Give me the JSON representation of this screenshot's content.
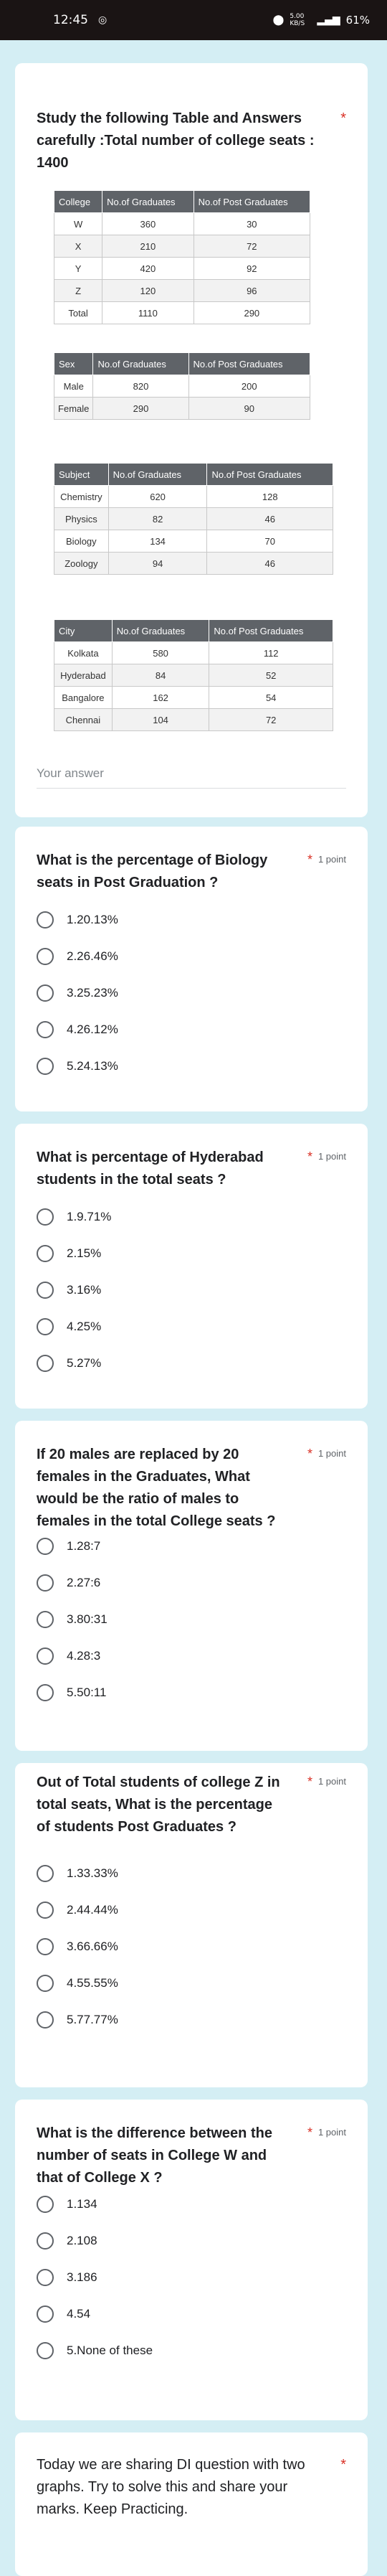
{
  "status_bar": {
    "time": "12:45",
    "net_speed": "5.00 KB/S",
    "battery": "61%"
  },
  "q0": {
    "title": "Study the following Table and Answers carefully :Total number of  college seats  :  1400",
    "table_college": {
      "headers": [
        "College",
        "No.of Graduates",
        "No.of Post Graduates"
      ],
      "rows": [
        [
          "W",
          "360",
          "30"
        ],
        [
          "X",
          "210",
          "72"
        ],
        [
          "Y",
          "420",
          "92"
        ],
        [
          "Z",
          "120",
          "96"
        ],
        [
          "Total",
          "1110",
          "290"
        ]
      ]
    },
    "table_sex": {
      "headers": [
        "Sex",
        "No.of Graduates",
        "No.of Post Graduates"
      ],
      "rows": [
        [
          "Male",
          "820",
          "200"
        ],
        [
          "Female",
          "290",
          "90"
        ]
      ]
    },
    "table_subject": {
      "headers": [
        "Subject",
        "No.of Graduates",
        "No.of Post Graduates"
      ],
      "rows": [
        [
          "Chemistry",
          "620",
          "128"
        ],
        [
          "Physics",
          "82",
          "46"
        ],
        [
          "Biology",
          "134",
          "70"
        ],
        [
          "Zoology",
          "94",
          "46"
        ]
      ]
    },
    "table_city": {
      "headers": [
        "City",
        "No.of Graduates",
        "No.of Post Graduates"
      ],
      "rows": [
        [
          "Kolkata",
          "580",
          "112"
        ],
        [
          "Hyderabad",
          "84",
          "52"
        ],
        [
          "Bangalore",
          "162",
          "54"
        ],
        [
          "Chennai",
          "104",
          "72"
        ]
      ]
    },
    "answer_placeholder": "Your answer"
  },
  "points_label": "1 point",
  "q1": {
    "title": "What is the percentage of Biology seats in Post Graduation ?",
    "options": [
      "1.20.13%",
      "2.26.46%",
      "3.25.23%",
      "4.26.12%",
      "5.24.13%"
    ]
  },
  "q2": {
    "title": "What is percentage of Hyderabad students in the total seats  ?",
    "options": [
      "1.9.71%",
      "2.15%",
      "3.16%",
      "4.25%",
      "5.27%"
    ]
  },
  "q3": {
    "title": "If 20 males are replaced by 20 females in the Graduates, What would be the ratio of males to females in the total College seats  ?",
    "options": [
      "1.28:7",
      "2.27:6",
      "3.80:31",
      "4.28:3",
      "5.50:11"
    ]
  },
  "q4": {
    "title": "Out of Total students of college Z in total seats, What is the percentage of students Post Graduates ?",
    "options": [
      "1.33.33%",
      "2.44.44%",
      "3.66.66%",
      "4.55.55%",
      "5.77.77%"
    ]
  },
  "q5": {
    "title": "What is the difference between the number of seats in  College W and that of College X ?",
    "options": [
      "1.134",
      "2.108",
      "3.186",
      "4.54",
      "5.None of these"
    ]
  },
  "q6": {
    "title": "Today we are sharing DI question with two graphs. Try to solve this and share your marks. Keep Practicing."
  }
}
